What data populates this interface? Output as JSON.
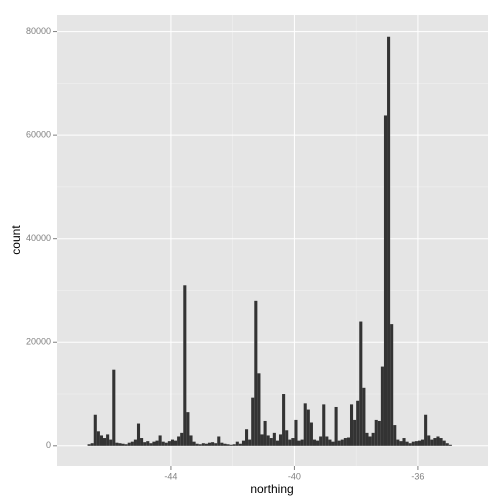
{
  "chart_data": {
    "type": "histogram",
    "x_label": "northing",
    "y_label": "count",
    "bins": [
      -46.7,
      -46.6,
      -46.5,
      -46.4,
      -46.3,
      -46.2,
      -46.1,
      -46,
      -45.9,
      -45.8,
      -45.7,
      -45.6,
      -45.5,
      -45.4,
      -45.3,
      -45.2,
      -45.1,
      -45,
      -44.9,
      -44.8,
      -44.7,
      -44.6,
      -44.5,
      -44.4,
      -44.3,
      -44.2,
      -44.1,
      -44,
      -43.9,
      -43.8,
      -43.7,
      -43.6,
      -43.5,
      -43.4,
      -43.3,
      -43.2,
      -43.1,
      -43,
      -42.9,
      -42.8,
      -42.7,
      -42.6,
      -42.5,
      -42.4,
      -42.3,
      -42.2,
      -42.1,
      -42,
      -41.9,
      -41.8,
      -41.7,
      -41.6,
      -41.5,
      -41.4,
      -41.3,
      -41.2,
      -41.1,
      -41,
      -40.9,
      -40.8,
      -40.7,
      -40.6,
      -40.5,
      -40.4,
      -40.3,
      -40.2,
      -40.1,
      -40,
      -39.9,
      -39.8,
      -39.7,
      -39.6,
      -39.5,
      -39.4,
      -39.3,
      -39.2,
      -39.1,
      -39,
      -38.9,
      -38.8,
      -38.7,
      -38.6,
      -38.5,
      -38.4,
      -38.3,
      -38.2,
      -38.1,
      -38,
      -37.9,
      -37.8,
      -37.7,
      -37.6,
      -37.5,
      -37.4,
      -37.3,
      -37.2,
      -37.1,
      -37,
      -36.9,
      -36.8,
      -36.7,
      -36.6,
      -36.5,
      -36.4,
      -36.3,
      -36.2,
      -36.1,
      -36,
      -35.9,
      -35.8,
      -35.7,
      -35.6,
      -35.5,
      -35.4,
      -35.3,
      -35.2,
      -35.1,
      -35,
      -34.9
    ],
    "values": [
      300,
      500,
      6000,
      2800,
      2000,
      1500,
      2200,
      1200,
      14700,
      600,
      500,
      400,
      300,
      600,
      800,
      1200,
      4300,
      1500,
      700,
      900,
      500,
      800,
      1000,
      2000,
      800,
      600,
      900,
      1200,
      1000,
      1800,
      2500,
      31000,
      6500,
      2000,
      800,
      400,
      300,
      500,
      400,
      600,
      700,
      500,
      1800,
      600,
      400,
      300,
      200,
      300,
      800,
      400,
      1000,
      3200,
      1200,
      9300,
      28000,
      14000,
      2200,
      4800,
      2000,
      1500,
      2500,
      1000,
      2200,
      10000,
      3000,
      1200,
      1500,
      5000,
      1000,
      1200,
      8200,
      7000,
      4500,
      1200,
      1000,
      1800,
      8000,
      1800,
      1200,
      800,
      7500,
      1000,
      1200,
      1500,
      1600,
      8000,
      5000,
      8700,
      24000,
      11200,
      2500,
      1800,
      2500,
      5000,
      4800,
      15300,
      63800,
      79000,
      23500,
      4000,
      1200,
      900,
      1500,
      800,
      500,
      800,
      900,
      1000,
      1200,
      6000,
      2000,
      1200,
      1500,
      1800,
      1500,
      1000,
      500,
      200
    ],
    "color": "#333333",
    "xlim": [
      -47.69,
      -33.73
    ],
    "ylim": [
      -3900,
      83200
    ],
    "xticks": [
      -44,
      -40,
      -36
    ],
    "yticks": [
      0,
      20000,
      40000,
      60000,
      80000
    ],
    "grid": true
  }
}
